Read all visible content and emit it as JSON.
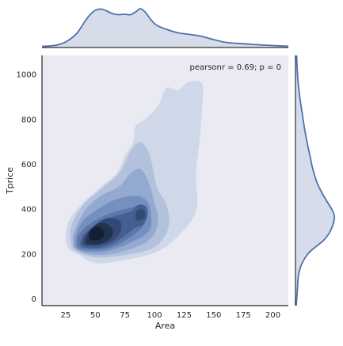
{
  "chart_data": {
    "type": "density",
    "subtype": "jointplot-kde",
    "x": {
      "label": "Area",
      "range": [
        5,
        213
      ],
      "ticks": [
        25,
        50,
        75,
        100,
        125,
        150,
        175,
        200
      ]
    },
    "y": {
      "label": "Tprice",
      "range": [
        -30,
        1085
      ],
      "ticks": [
        0,
        200,
        400,
        600,
        800,
        1000
      ]
    },
    "annotation": "pearsonr = 0.69; p = 0",
    "grid": false,
    "colors": {
      "plot_bg": "#eaeaf2",
      "marginal_fill": "#d6dcea",
      "marginal_line": "#4c72b0",
      "levels": [
        "#cfd8e8",
        "#b3c2dc",
        "#94a9cf",
        "#7590bf",
        "#5c78ab",
        "#465f92",
        "#334873",
        "#223350",
        "#141f33"
      ]
    },
    "kde_levels": [
      [
        [
          35,
          200
        ],
        [
          50,
          160
        ],
        [
          72,
          170
        ],
        [
          100,
          205
        ],
        [
          118,
          270
        ],
        [
          135,
          390
        ],
        [
          135,
          560
        ],
        [
          138,
          700
        ],
        [
          140,
          840
        ],
        [
          140,
          960
        ],
        [
          128,
          965
        ],
        [
          120,
          930
        ],
        [
          110,
          940
        ],
        [
          103,
          860
        ],
        [
          92,
          800
        ],
        [
          84,
          770
        ],
        [
          82,
          700
        ],
        [
          75,
          640
        ],
        [
          68,
          560
        ],
        [
          55,
          500
        ],
        [
          40,
          430
        ],
        [
          28,
          350
        ],
        [
          25,
          270
        ],
        [
          28,
          220
        ]
      ],
      [
        [
          33,
          215
        ],
        [
          50,
          185
        ],
        [
          75,
          195
        ],
        [
          100,
          230
        ],
        [
          112,
          320
        ],
        [
          110,
          420
        ],
        [
          102,
          500
        ],
        [
          96,
          640
        ],
        [
          88,
          700
        ],
        [
          80,
          660
        ],
        [
          70,
          560
        ],
        [
          55,
          490
        ],
        [
          40,
          420
        ],
        [
          30,
          330
        ],
        [
          29,
          260
        ]
      ],
      [
        [
          34,
          220
        ],
        [
          50,
          195
        ],
        [
          72,
          210
        ],
        [
          95,
          260
        ],
        [
          103,
          340
        ],
        [
          100,
          430
        ],
        [
          95,
          520
        ],
        [
          88,
          580
        ],
        [
          80,
          560
        ],
        [
          70,
          500
        ],
        [
          55,
          460
        ],
        [
          42,
          400
        ],
        [
          33,
          310
        ],
        [
          31,
          260
        ]
      ],
      [
        [
          35,
          222
        ],
        [
          55,
          210
        ],
        [
          75,
          240
        ],
        [
          95,
          300
        ],
        [
          97,
          380
        ],
        [
          93,
          440
        ],
        [
          82,
          460
        ],
        [
          66,
          440
        ],
        [
          52,
          400
        ],
        [
          40,
          350
        ],
        [
          34,
          290
        ]
      ],
      [
        [
          37,
          226
        ],
        [
          55,
          220
        ],
        [
          72,
          250
        ],
        [
          90,
          320
        ],
        [
          92,
          380
        ],
        [
          88,
          410
        ],
        [
          75,
          400
        ],
        [
          62,
          380
        ],
        [
          50,
          350
        ],
        [
          40,
          310
        ],
        [
          35,
          270
        ]
      ],
      [
        [
          39,
          232
        ],
        [
          55,
          228
        ],
        [
          70,
          262
        ],
        [
          87,
          335
        ],
        [
          90,
          370
        ],
        [
          86,
          395
        ],
        [
          75,
          380
        ],
        [
          62,
          360
        ],
        [
          52,
          335
        ],
        [
          42,
          298
        ],
        [
          38,
          262
        ]
      ],
      [
        [
          41,
          240
        ],
        [
          54,
          238
        ],
        [
          66,
          265
        ],
        [
          72,
          310
        ],
        [
          70,
          350
        ],
        [
          60,
          360
        ],
        [
          51,
          335
        ],
        [
          44,
          298
        ],
        [
          40,
          268
        ]
      ],
      [
        [
          43,
          246
        ],
        [
          53,
          244
        ],
        [
          62,
          266
        ],
        [
          65,
          300
        ],
        [
          61,
          330
        ],
        [
          54,
          338
        ],
        [
          48,
          318
        ],
        [
          44,
          290
        ],
        [
          42,
          264
        ]
      ],
      [
        [
          46,
          262
        ],
        [
          53,
          262
        ],
        [
          57,
          280
        ],
        [
          57,
          304
        ],
        [
          53,
          320
        ],
        [
          48,
          314
        ],
        [
          45,
          296
        ],
        [
          45,
          276
        ]
      ]
    ],
    "kde_secondary_blob": [
      [
        [
          82,
          320
        ],
        [
          90,
          330
        ],
        [
          94,
          370
        ],
        [
          93,
          410
        ],
        [
          87,
          420
        ],
        [
          82,
          400
        ],
        [
          80,
          360
        ]
      ],
      [
        [
          85,
          350
        ],
        [
          91,
          358
        ],
        [
          92,
          385
        ],
        [
          89,
          400
        ],
        [
          85,
          392
        ],
        [
          84,
          370
        ]
      ]
    ],
    "marginal_x": [
      [
        5,
        0.005
      ],
      [
        15,
        0.03
      ],
      [
        20,
        0.06
      ],
      [
        25,
        0.12
      ],
      [
        30,
        0.22
      ],
      [
        35,
        0.36
      ],
      [
        40,
        0.58
      ],
      [
        45,
        0.79
      ],
      [
        50,
        0.92
      ],
      [
        55,
        0.95
      ],
      [
        60,
        0.9
      ],
      [
        65,
        0.83
      ],
      [
        70,
        0.81
      ],
      [
        75,
        0.82
      ],
      [
        80,
        0.81
      ],
      [
        85,
        0.9
      ],
      [
        88,
        0.96
      ],
      [
        92,
        0.88
      ],
      [
        97,
        0.68
      ],
      [
        102,
        0.54
      ],
      [
        110,
        0.44
      ],
      [
        120,
        0.35
      ],
      [
        130,
        0.31
      ],
      [
        140,
        0.26
      ],
      [
        150,
        0.18
      ],
      [
        160,
        0.11
      ],
      [
        170,
        0.085
      ],
      [
        180,
        0.065
      ],
      [
        190,
        0.045
      ],
      [
        200,
        0.03
      ],
      [
        213,
        0.012
      ]
    ],
    "marginal_y": [
      [
        -30,
        0.0
      ],
      [
        0,
        0.01
      ],
      [
        50,
        0.03
      ],
      [
        100,
        0.05
      ],
      [
        150,
        0.12
      ],
      [
        200,
        0.28
      ],
      [
        230,
        0.46
      ],
      [
        260,
        0.66
      ],
      [
        290,
        0.79
      ],
      [
        320,
        0.87
      ],
      [
        350,
        0.92
      ],
      [
        375,
        0.92
      ],
      [
        400,
        0.86
      ],
      [
        430,
        0.76
      ],
      [
        470,
        0.63
      ],
      [
        520,
        0.5
      ],
      [
        580,
        0.4
      ],
      [
        640,
        0.33
      ],
      [
        700,
        0.26
      ],
      [
        760,
        0.2
      ],
      [
        820,
        0.15
      ],
      [
        880,
        0.1
      ],
      [
        940,
        0.06
      ],
      [
        1000,
        0.03
      ],
      [
        1050,
        0.015
      ],
      [
        1085,
        0.01
      ]
    ]
  }
}
